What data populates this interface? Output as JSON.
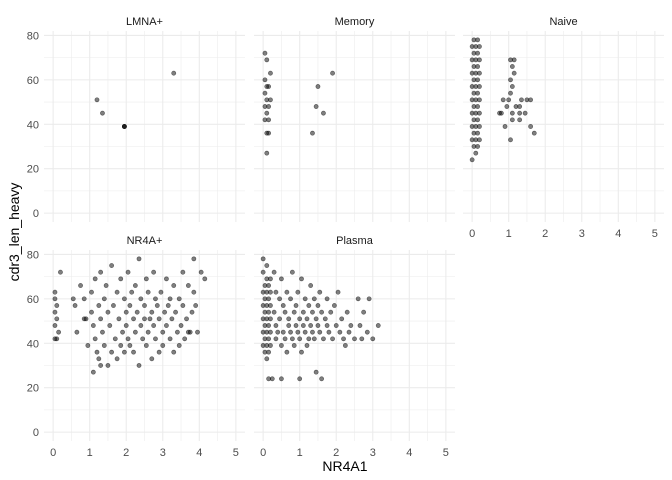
{
  "chart_data": {
    "type": "scatter",
    "facet_layout": "wrap 3 columns, 2 rows",
    "xlabel": "NR4A1",
    "ylabel": "cdr3_len_heavy",
    "xlim": [
      -0.25,
      5.25
    ],
    "ylim": [
      -4,
      82
    ],
    "x_ticks": [
      "0",
      "1",
      "2",
      "3",
      "4",
      "5"
    ],
    "y_ticks": [
      "0",
      "20",
      "40",
      "60",
      "80"
    ],
    "x_tick_values": [
      0,
      1,
      2,
      3,
      4,
      5
    ],
    "y_tick_values": [
      0,
      20,
      40,
      60,
      80
    ],
    "grid": true,
    "point_color": "#000000",
    "point_alpha": 0.5,
    "panels": [
      {
        "label": "LMNA+",
        "points": [
          [
            1.2,
            51
          ],
          [
            1.35,
            45
          ],
          [
            1.95,
            39
          ],
          [
            1.95,
            39
          ],
          [
            1.95,
            39
          ],
          [
            3.3,
            63
          ]
        ]
      },
      {
        "label": "Memory",
        "points": [
          [
            0.05,
            72
          ],
          [
            0.1,
            69
          ],
          [
            0.2,
            63
          ],
          [
            0.05,
            60
          ],
          [
            0.1,
            57
          ],
          [
            0.15,
            57
          ],
          [
            0.05,
            54
          ],
          [
            0.1,
            51
          ],
          [
            0.2,
            51
          ],
          [
            0.05,
            48
          ],
          [
            0.15,
            48
          ],
          [
            0.1,
            45
          ],
          [
            0.15,
            42
          ],
          [
            0.05,
            42
          ],
          [
            0.1,
            36
          ],
          [
            0.15,
            36
          ],
          [
            0.1,
            27
          ],
          [
            1.5,
            57
          ],
          [
            1.45,
            48
          ],
          [
            1.65,
            45
          ],
          [
            1.35,
            36
          ],
          [
            1.9,
            63
          ]
        ]
      },
      {
        "label": "Naive",
        "points": [
          [
            0.05,
            78
          ],
          [
            0.15,
            78
          ],
          [
            0.0,
            75
          ],
          [
            0.1,
            75
          ],
          [
            0.2,
            75
          ],
          [
            0.05,
            72
          ],
          [
            0.15,
            72
          ],
          [
            0.0,
            69
          ],
          [
            0.1,
            69
          ],
          [
            0.2,
            69
          ],
          [
            0.05,
            66
          ],
          [
            0.15,
            66
          ],
          [
            0.0,
            63
          ],
          [
            0.1,
            63
          ],
          [
            0.2,
            63
          ],
          [
            0.05,
            60
          ],
          [
            0.15,
            60
          ],
          [
            0.0,
            57
          ],
          [
            0.1,
            57
          ],
          [
            0.2,
            57
          ],
          [
            0.05,
            54
          ],
          [
            0.15,
            54
          ],
          [
            0.0,
            51
          ],
          [
            0.1,
            51
          ],
          [
            0.2,
            51
          ],
          [
            0.05,
            48
          ],
          [
            0.15,
            48
          ],
          [
            0.0,
            45
          ],
          [
            0.1,
            45
          ],
          [
            0.2,
            45
          ],
          [
            0.05,
            42
          ],
          [
            0.15,
            42
          ],
          [
            0.0,
            39
          ],
          [
            0.1,
            39
          ],
          [
            0.2,
            39
          ],
          [
            0.05,
            36
          ],
          [
            0.15,
            36
          ],
          [
            0.0,
            33
          ],
          [
            0.1,
            33
          ],
          [
            0.2,
            33
          ],
          [
            0.05,
            30
          ],
          [
            0.15,
            30
          ],
          [
            0.1,
            27
          ],
          [
            0.0,
            24
          ],
          [
            1.05,
            69
          ],
          [
            1.15,
            69
          ],
          [
            1.1,
            66
          ],
          [
            1.15,
            63
          ],
          [
            1.05,
            60
          ],
          [
            1.1,
            57
          ],
          [
            1.05,
            54
          ],
          [
            0.85,
            51
          ],
          [
            1.0,
            51
          ],
          [
            0.75,
            45
          ],
          [
            0.8,
            45
          ],
          [
            0.95,
            48
          ],
          [
            1.2,
            48
          ],
          [
            1.3,
            48
          ],
          [
            1.35,
            51
          ],
          [
            1.5,
            51
          ],
          [
            1.6,
            51
          ],
          [
            1.1,
            45
          ],
          [
            1.3,
            45
          ],
          [
            1.45,
            45
          ],
          [
            1.3,
            42
          ],
          [
            1.1,
            42
          ],
          [
            0.9,
            39
          ],
          [
            1.6,
            39
          ],
          [
            1.7,
            36
          ],
          [
            1.05,
            33
          ]
        ]
      },
      {
        "label": "NR4A+",
        "points": [
          [
            0.05,
            63
          ],
          [
            0.05,
            60
          ],
          [
            0.1,
            57
          ],
          [
            0.05,
            54
          ],
          [
            0.1,
            51
          ],
          [
            0.05,
            48
          ],
          [
            0.15,
            45
          ],
          [
            0.05,
            42
          ],
          [
            0.1,
            42
          ],
          [
            0.2,
            72
          ],
          [
            0.55,
            60
          ],
          [
            0.6,
            57
          ],
          [
            0.65,
            45
          ],
          [
            0.75,
            66
          ],
          [
            0.85,
            60
          ],
          [
            0.85,
            51
          ],
          [
            0.9,
            51
          ],
          [
            0.95,
            39
          ],
          [
            1.05,
            63
          ],
          [
            1.05,
            54
          ],
          [
            1.1,
            48
          ],
          [
            1.1,
            27
          ],
          [
            1.15,
            69
          ],
          [
            1.15,
            42
          ],
          [
            1.2,
            36
          ],
          [
            1.25,
            57
          ],
          [
            1.25,
            33
          ],
          [
            1.3,
            72
          ],
          [
            1.3,
            51
          ],
          [
            1.3,
            30
          ],
          [
            1.35,
            45
          ],
          [
            1.4,
            60
          ],
          [
            1.4,
            39
          ],
          [
            1.45,
            66
          ],
          [
            1.5,
            54
          ],
          [
            1.5,
            30
          ],
          [
            1.55,
            48
          ],
          [
            1.6,
            75
          ],
          [
            1.6,
            36
          ],
          [
            1.65,
            57
          ],
          [
            1.7,
            42
          ],
          [
            1.75,
            63
          ],
          [
            1.75,
            33
          ],
          [
            1.8,
            51
          ],
          [
            1.85,
            69
          ],
          [
            1.85,
            39
          ],
          [
            1.9,
            45
          ],
          [
            1.95,
            60
          ],
          [
            1.95,
            36
          ],
          [
            2.0,
            54
          ],
          [
            2.0,
            48
          ],
          [
            2.05,
            72
          ],
          [
            2.05,
            42
          ],
          [
            2.1,
            57
          ],
          [
            2.1,
            39
          ],
          [
            2.15,
            63
          ],
          [
            2.2,
            51
          ],
          [
            2.2,
            36
          ],
          [
            2.25,
            66
          ],
          [
            2.25,
            45
          ],
          [
            2.3,
            54
          ],
          [
            2.35,
            78
          ],
          [
            2.35,
            30
          ],
          [
            2.4,
            60
          ],
          [
            2.4,
            48
          ],
          [
            2.45,
            42
          ],
          [
            2.5,
            57
          ],
          [
            2.5,
            51
          ],
          [
            2.55,
            69
          ],
          [
            2.55,
            39
          ],
          [
            2.6,
            63
          ],
          [
            2.6,
            45
          ],
          [
            2.65,
            51
          ],
          [
            2.7,
            54
          ],
          [
            2.7,
            33
          ],
          [
            2.75,
            72
          ],
          [
            2.75,
            48
          ],
          [
            2.8,
            60
          ],
          [
            2.8,
            42
          ],
          [
            2.85,
            57
          ],
          [
            2.9,
            51
          ],
          [
            2.9,
            36
          ],
          [
            2.95,
            63
          ],
          [
            3.0,
            45
          ],
          [
            3.0,
            39
          ],
          [
            3.05,
            54
          ],
          [
            3.1,
            48
          ],
          [
            3.1,
            69
          ],
          [
            3.15,
            57
          ],
          [
            3.2,
            42
          ],
          [
            3.2,
            60
          ],
          [
            3.25,
            51
          ],
          [
            3.3,
            66
          ],
          [
            3.3,
            36
          ],
          [
            3.35,
            54
          ],
          [
            3.4,
            45
          ],
          [
            3.45,
            60
          ],
          [
            3.45,
            39
          ],
          [
            3.5,
            48
          ],
          [
            3.55,
            72
          ],
          [
            3.55,
            57
          ],
          [
            3.6,
            42
          ],
          [
            3.65,
            51
          ],
          [
            3.7,
            66
          ],
          [
            3.7,
            45
          ],
          [
            3.75,
            45
          ],
          [
            3.8,
            54
          ],
          [
            3.85,
            63
          ],
          [
            3.85,
            78
          ],
          [
            3.9,
            57
          ],
          [
            3.95,
            45
          ],
          [
            4.05,
            72
          ],
          [
            4.15,
            69
          ]
        ]
      },
      {
        "label": "Plasma",
        "points": [
          [
            0.0,
            78
          ],
          [
            0.1,
            75
          ],
          [
            0.0,
            72
          ],
          [
            0.1,
            69
          ],
          [
            0.2,
            69
          ],
          [
            0.05,
            66
          ],
          [
            0.15,
            66
          ],
          [
            0.0,
            63
          ],
          [
            0.1,
            63
          ],
          [
            0.2,
            63
          ],
          [
            0.05,
            60
          ],
          [
            0.15,
            60
          ],
          [
            0.0,
            57
          ],
          [
            0.1,
            57
          ],
          [
            0.2,
            57
          ],
          [
            0.05,
            54
          ],
          [
            0.15,
            54
          ],
          [
            0.0,
            51
          ],
          [
            0.1,
            51
          ],
          [
            0.2,
            51
          ],
          [
            0.05,
            48
          ],
          [
            0.15,
            48
          ],
          [
            0.0,
            45
          ],
          [
            0.1,
            45
          ],
          [
            0.2,
            45
          ],
          [
            0.05,
            42
          ],
          [
            0.15,
            42
          ],
          [
            0.0,
            39
          ],
          [
            0.1,
            39
          ],
          [
            0.2,
            39
          ],
          [
            0.05,
            36
          ],
          [
            0.15,
            36
          ],
          [
            0.1,
            33
          ],
          [
            0.15,
            24
          ],
          [
            0.25,
            24
          ],
          [
            0.3,
            72
          ],
          [
            0.35,
            63
          ],
          [
            0.3,
            54
          ],
          [
            0.35,
            48
          ],
          [
            0.4,
            45
          ],
          [
            0.35,
            42
          ],
          [
            0.45,
            60
          ],
          [
            0.45,
            51
          ],
          [
            0.5,
            69
          ],
          [
            0.5,
            39
          ],
          [
            0.55,
            57
          ],
          [
            0.55,
            45
          ],
          [
            0.6,
            54
          ],
          [
            0.6,
            42
          ],
          [
            0.65,
            63
          ],
          [
            0.65,
            36
          ],
          [
            0.7,
            48
          ],
          [
            0.7,
            51
          ],
          [
            0.75,
            60
          ],
          [
            0.75,
            45
          ],
          [
            0.8,
            72
          ],
          [
            0.8,
            42
          ],
          [
            0.85,
            54
          ],
          [
            0.85,
            39
          ],
          [
            0.9,
            57
          ],
          [
            0.9,
            48
          ],
          [
            0.95,
            63
          ],
          [
            0.95,
            45
          ],
          [
            1.0,
            51
          ],
          [
            1.0,
            42
          ],
          [
            1.05,
            69
          ],
          [
            1.05,
            36
          ],
          [
            1.1,
            54
          ],
          [
            1.1,
            48
          ],
          [
            1.15,
            60
          ],
          [
            1.15,
            45
          ],
          [
            1.2,
            51
          ],
          [
            1.2,
            39
          ],
          [
            1.25,
            57
          ],
          [
            1.25,
            42
          ],
          [
            1.3,
            66
          ],
          [
            1.3,
            48
          ],
          [
            1.35,
            54
          ],
          [
            1.35,
            45
          ],
          [
            1.4,
            60
          ],
          [
            1.4,
            42
          ],
          [
            1.45,
            51
          ],
          [
            1.45,
            27
          ],
          [
            1.5,
            57
          ],
          [
            1.5,
            48
          ],
          [
            1.55,
            63
          ],
          [
            1.55,
            45
          ],
          [
            1.6,
            54
          ],
          [
            1.6,
            24
          ],
          [
            1.65,
            42
          ],
          [
            1.7,
            51
          ],
          [
            1.75,
            48
          ],
          [
            1.75,
            60
          ],
          [
            1.8,
            45
          ],
          [
            1.85,
            54
          ],
          [
            1.9,
            42
          ],
          [
            1.95,
            57
          ],
          [
            2.0,
            48
          ],
          [
            2.05,
            63
          ],
          [
            2.1,
            45
          ],
          [
            2.15,
            51
          ],
          [
            2.2,
            42
          ],
          [
            2.25,
            39
          ],
          [
            2.3,
            54
          ],
          [
            2.35,
            45
          ],
          [
            2.4,
            48
          ],
          [
            2.5,
            42
          ],
          [
            2.6,
            60
          ],
          [
            2.65,
            48
          ],
          [
            2.7,
            42
          ],
          [
            2.75,
            54
          ],
          [
            2.85,
            45
          ],
          [
            2.9,
            60
          ],
          [
            3.0,
            42
          ],
          [
            3.15,
            48
          ],
          [
            0.5,
            24
          ],
          [
            1.0,
            24
          ]
        ]
      }
    ]
  }
}
